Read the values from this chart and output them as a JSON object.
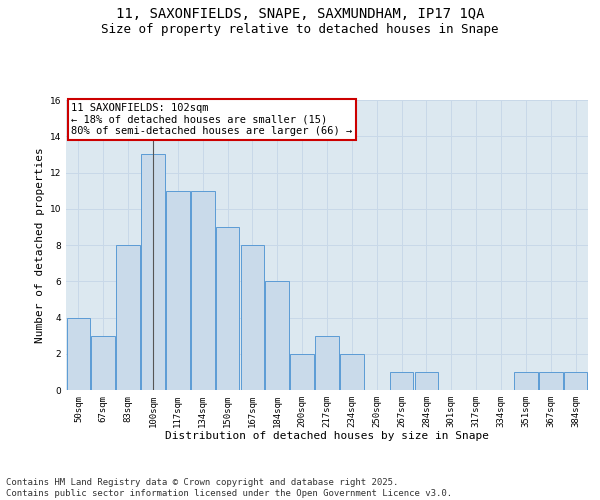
{
  "title_line1": "11, SAXONFIELDS, SNAPE, SAXMUNDHAM, IP17 1QA",
  "title_line2": "Size of property relative to detached houses in Snape",
  "xlabel": "Distribution of detached houses by size in Snape",
  "ylabel": "Number of detached properties",
  "categories": [
    "50sqm",
    "67sqm",
    "83sqm",
    "100sqm",
    "117sqm",
    "134sqm",
    "150sqm",
    "167sqm",
    "184sqm",
    "200sqm",
    "217sqm",
    "234sqm",
    "250sqm",
    "267sqm",
    "284sqm",
    "301sqm",
    "317sqm",
    "334sqm",
    "351sqm",
    "367sqm",
    "384sqm"
  ],
  "values": [
    4,
    3,
    8,
    13,
    11,
    11,
    9,
    8,
    6,
    2,
    3,
    2,
    0,
    1,
    1,
    0,
    0,
    0,
    1,
    1,
    1
  ],
  "bar_color": "#c9daea",
  "bar_edge_color": "#5b9bd5",
  "highlight_index": 3,
  "highlight_line_color": "#555555",
  "annotation_text": "11 SAXONFIELDS: 102sqm\n← 18% of detached houses are smaller (15)\n80% of semi-detached houses are larger (66) →",
  "annotation_box_color": "#ffffff",
  "annotation_box_edge": "#cc0000",
  "ylim": [
    0,
    16
  ],
  "yticks": [
    0,
    2,
    4,
    6,
    8,
    10,
    12,
    14,
    16
  ],
  "grid_color": "#c8d8e8",
  "background_color": "#dce8f0",
  "footer_text": "Contains HM Land Registry data © Crown copyright and database right 2025.\nContains public sector information licensed under the Open Government Licence v3.0.",
  "title_fontsize": 10,
  "subtitle_fontsize": 9,
  "axis_label_fontsize": 8,
  "tick_fontsize": 6.5,
  "annotation_fontsize": 7.5,
  "footer_fontsize": 6.5
}
